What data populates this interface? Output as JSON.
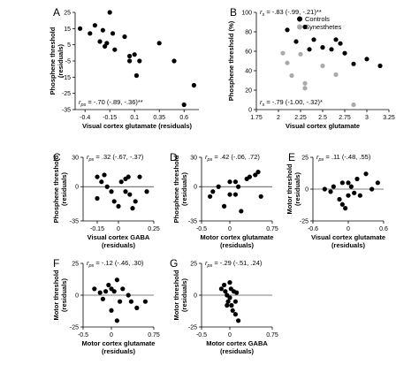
{
  "chart_data": [
    {
      "id": "A",
      "type": "scatter",
      "letter": "A",
      "xlabel": "Visual cortex glutamate (residuals)",
      "ylabel": [
        "Phosphene threshold",
        "(residuals)"
      ],
      "xlim": [
        -0.5,
        0.75
      ],
      "ylim": [
        -35,
        25
      ],
      "xticks": [
        {
          "v": -0.4,
          "label": "-0.4"
        },
        {
          "v": -0.15,
          "label": "-0.15"
        },
        {
          "v": 0.1,
          "label": "0.1"
        },
        {
          "v": 0.35,
          "label": "0.35"
        },
        {
          "v": 0.6,
          "label": "0.6"
        }
      ],
      "yticks": [
        {
          "v": 25,
          "label": "25"
        },
        {
          "v": 15,
          "label": "15"
        },
        {
          "v": 5,
          "label": "5"
        },
        {
          "v": -5,
          "label": "-5"
        },
        {
          "v": -15,
          "label": "-15"
        },
        {
          "v": -25,
          "label": "-25"
        },
        {
          "v": -35,
          "label": "-35"
        }
      ],
      "stat": {
        "prefix": "r",
        "sub": "ps",
        "text": " = -.70 (-.89, -.36)**"
      },
      "stat_pos": "bottom-left",
      "series": [
        {
          "color": "#000000",
          "points": [
            [
              -0.45,
              15
            ],
            [
              -0.35,
              12
            ],
            [
              -0.3,
              17
            ],
            [
              -0.25,
              7
            ],
            [
              -0.22,
              14
            ],
            [
              -0.2,
              4
            ],
            [
              -0.18,
              6
            ],
            [
              -0.15,
              25
            ],
            [
              -0.12,
              12
            ],
            [
              -0.1,
              2
            ],
            [
              0.0,
              10
            ],
            [
              0.05,
              -5
            ],
            [
              0.05,
              -2
            ],
            [
              0.1,
              -1
            ],
            [
              0.12,
              -14
            ],
            [
              0.15,
              -5
            ],
            [
              0.35,
              6
            ],
            [
              0.5,
              -5
            ],
            [
              0.6,
              -32
            ],
            [
              0.7,
              -20
            ]
          ]
        }
      ]
    },
    {
      "id": "B",
      "type": "scatter",
      "letter": "B",
      "xlabel": "Visual cortex glutamate",
      "ylabel": [
        "Phosphene threshold (%)"
      ],
      "xlim": [
        1.75,
        3.25
      ],
      "ylim": [
        0,
        100
      ],
      "xticks": [
        {
          "v": 1.75,
          "label": "1.75"
        },
        {
          "v": 2.0,
          "label": "2"
        },
        {
          "v": 2.25,
          "label": "2.25"
        },
        {
          "v": 2.5,
          "label": "2.5"
        },
        {
          "v": 2.75,
          "label": "2.75"
        },
        {
          "v": 3.0,
          "label": "3"
        },
        {
          "v": 3.25,
          "label": "3.25"
        }
      ],
      "yticks": [
        {
          "v": 100,
          "label": "100"
        },
        {
          "v": 80,
          "label": "80"
        },
        {
          "v": 60,
          "label": "60"
        },
        {
          "v": 40,
          "label": "40"
        },
        {
          "v": 20,
          "label": "20"
        },
        {
          "v": 0,
          "label": "0"
        }
      ],
      "stat": {
        "prefix": "r",
        "sub": "s",
        "text": " = -.83 (-.99, -.21)**"
      },
      "stat2": {
        "prefix": "r",
        "sub": "s",
        "text": " = -.79 (-1.00, -.32)*"
      },
      "stat_pos": "top-left",
      "legend": [
        {
          "label": "Controls",
          "color": "#000000"
        },
        {
          "label": "Synesthetes",
          "color": "#aaaaaa"
        }
      ],
      "series": [
        {
          "name": "Controls",
          "color": "#000000",
          "points": [
            [
              2.1,
              82
            ],
            [
              2.2,
              70
            ],
            [
              2.3,
              85
            ],
            [
              2.35,
              62
            ],
            [
              2.4,
              72
            ],
            [
              2.5,
              64
            ],
            [
              2.6,
              62
            ],
            [
              2.65,
              72
            ],
            [
              2.7,
              68
            ],
            [
              2.75,
              58
            ],
            [
              2.85,
              47
            ],
            [
              3.0,
              52
            ],
            [
              3.15,
              45
            ]
          ]
        },
        {
          "name": "Synesthetes",
          "color": "#aaaaaa",
          "points": [
            [
              2.05,
              58
            ],
            [
              2.1,
              48
            ],
            [
              2.15,
              35
            ],
            [
              2.25,
              57
            ],
            [
              2.3,
              27
            ],
            [
              2.3,
              22
            ],
            [
              2.5,
              45
            ],
            [
              2.65,
              36
            ],
            [
              2.85,
              5
            ]
          ]
        }
      ]
    },
    {
      "id": "C",
      "type": "scatter",
      "letter": "C",
      "xlabel": "Visual cortex GABA",
      "xlabel2": "(residuals)",
      "ylabel": [
        "Phosphene threshold",
        "(residuals)"
      ],
      "xlim": [
        -0.25,
        0.25
      ],
      "ylim": [
        -35,
        30
      ],
      "xticks": [
        {
          "v": -0.15,
          "label": "-0.15"
        },
        {
          "v": 0.0,
          "label": "0"
        },
        {
          "v": 0.25,
          "label": "0.25"
        }
      ],
      "yticks": [
        {
          "v": 30,
          "label": "30"
        },
        {
          "v": 0,
          "label": "0"
        },
        {
          "v": -35,
          "label": "-35"
        }
      ],
      "zero_x": true,
      "stat": {
        "prefix": "r",
        "sub": "ps",
        "text": " = .32 (-.67, -.37)"
      },
      "stat_pos": "top-left",
      "series": [
        {
          "color": "#000000",
          "points": [
            [
              -0.15,
              10
            ],
            [
              -0.12,
              5
            ],
            [
              -0.1,
              12
            ],
            [
              -0.08,
              0
            ],
            [
              -0.05,
              -5
            ],
            [
              -0.03,
              -15
            ],
            [
              0.0,
              -20
            ],
            [
              0.02,
              5
            ],
            [
              0.05,
              -5
            ],
            [
              0.05,
              8
            ],
            [
              0.07,
              10
            ],
            [
              0.1,
              -22
            ],
            [
              0.12,
              -15
            ],
            [
              0.15,
              10
            ],
            [
              0.2,
              -5
            ],
            [
              -0.15,
              -12
            ],
            [
              0.08,
              -8
            ]
          ]
        }
      ]
    },
    {
      "id": "D",
      "type": "scatter",
      "letter": "D",
      "xlabel": "Motor cortex glutamate",
      "xlabel2": "(residuals)",
      "ylabel": [
        "Phosphene threshold",
        "(residuals)"
      ],
      "xlim": [
        -0.5,
        0.75
      ],
      "ylim": [
        -35,
        30
      ],
      "xticks": [
        {
          "v": -0.5,
          "label": "-0.5"
        },
        {
          "v": 0.0,
          "label": "0"
        },
        {
          "v": 0.75,
          "label": "0.75"
        }
      ],
      "yticks": [
        {
          "v": 30,
          "label": "30"
        },
        {
          "v": 0,
          "label": "0"
        },
        {
          "v": -35,
          "label": "-35"
        }
      ],
      "zero_x": true,
      "stat": {
        "prefix": "r",
        "sub": "ps",
        "text": " = .42 (-.06, .72)"
      },
      "stat_pos": "top-left",
      "series": [
        {
          "color": "#000000",
          "points": [
            [
              -0.35,
              -10
            ],
            [
              -0.3,
              -5
            ],
            [
              -0.2,
              0
            ],
            [
              -0.1,
              -20
            ],
            [
              0.0,
              -8
            ],
            [
              0.0,
              5
            ],
            [
              0.1,
              -8
            ],
            [
              0.15,
              0
            ],
            [
              0.2,
              -25
            ],
            [
              0.3,
              8
            ],
            [
              0.35,
              10
            ],
            [
              0.45,
              12
            ],
            [
              0.5,
              15
            ],
            [
              0.55,
              -10
            ],
            [
              0.1,
              5
            ]
          ]
        }
      ]
    },
    {
      "id": "E",
      "type": "scatter",
      "letter": "E",
      "xlabel": "Visual cortex glutamate",
      "xlabel2": "(residuals)",
      "ylabel": [
        "Motor threshold",
        "(residuals)"
      ],
      "xlim": [
        -0.6,
        0.6
      ],
      "ylim": [
        -25,
        25
      ],
      "xticks": [
        {
          "v": -0.6,
          "label": "-0.6"
        },
        {
          "v": 0.0,
          "label": "0"
        },
        {
          "v": 0.6,
          "label": "0.6"
        }
      ],
      "yticks": [
        {
          "v": 25,
          "label": "25"
        },
        {
          "v": 0,
          "label": "0"
        },
        {
          "v": -25,
          "label": "-25"
        }
      ],
      "zero_x": true,
      "stat": {
        "prefix": "r",
        "sub": "ps",
        "text": " = .11 (-.48, .55)"
      },
      "stat_pos": "top-left",
      "series": [
        {
          "color": "#000000",
          "points": [
            [
              -0.4,
              0
            ],
            [
              -0.3,
              -2
            ],
            [
              -0.25,
              2
            ],
            [
              -0.15,
              -8
            ],
            [
              -0.1,
              -12
            ],
            [
              -0.05,
              -15
            ],
            [
              0.0,
              5
            ],
            [
              0.0,
              -5
            ],
            [
              0.05,
              2
            ],
            [
              0.1,
              -3
            ],
            [
              0.15,
              8
            ],
            [
              0.2,
              -5
            ],
            [
              0.3,
              12
            ],
            [
              0.4,
              0
            ],
            [
              0.5,
              5
            ],
            [
              -0.1,
              5
            ]
          ]
        }
      ]
    },
    {
      "id": "F",
      "type": "scatter",
      "letter": "F",
      "xlabel": "Motor cortex glutamate",
      "xlabel2": "(residuals)",
      "ylabel": [
        "Motor threshold",
        "(residuals)"
      ],
      "xlim": [
        -0.5,
        0.75
      ],
      "ylim": [
        -25,
        25
      ],
      "xticks": [
        {
          "v": -0.5,
          "label": "-0.5"
        },
        {
          "v": 0.0,
          "label": "0"
        },
        {
          "v": 0.75,
          "label": "0.75"
        }
      ],
      "yticks": [
        {
          "v": 25,
          "label": "25"
        },
        {
          "v": 0,
          "label": "0"
        },
        {
          "v": -25,
          "label": "-25"
        }
      ],
      "zero_x": true,
      "stat": {
        "prefix": "r",
        "sub": "ps",
        "text": " = -.12 (-.46, .30)"
      },
      "stat_pos": "top-left",
      "series": [
        {
          "color": "#000000",
          "points": [
            [
              -0.3,
              5
            ],
            [
              -0.2,
              2
            ],
            [
              -0.15,
              -3
            ],
            [
              -0.1,
              3
            ],
            [
              -0.05,
              8
            ],
            [
              0.0,
              5
            ],
            [
              0.0,
              -12
            ],
            [
              0.05,
              3
            ],
            [
              0.1,
              12
            ],
            [
              0.15,
              -5
            ],
            [
              0.2,
              5
            ],
            [
              0.3,
              0
            ],
            [
              0.35,
              -5
            ],
            [
              0.45,
              -10
            ],
            [
              0.1,
              -20
            ],
            [
              0.6,
              -5
            ]
          ]
        }
      ]
    },
    {
      "id": "G",
      "type": "scatter",
      "letter": "G",
      "xlabel": "Motor cortex GABA",
      "xlabel2": "(residuals)",
      "ylabel": [
        "Motor threshold",
        "(residuals)"
      ],
      "xlim": [
        -0.5,
        0.75
      ],
      "ylim": [
        -25,
        25
      ],
      "xticks": [
        {
          "v": -0.5,
          "label": "-0.5"
        },
        {
          "v": 0.0,
          "label": "0"
        },
        {
          "v": 0.75,
          "label": "0.75"
        }
      ],
      "yticks": [
        {
          "v": 25,
          "label": "25"
        },
        {
          "v": 0,
          "label": "0"
        },
        {
          "v": -25,
          "label": "-25"
        }
      ],
      "zero_x": true,
      "stat": {
        "prefix": "r",
        "sub": "ps",
        "text": " = -.29 (-.51, .24)"
      },
      "stat_pos": "top-left",
      "series": [
        {
          "color": "#000000",
          "points": [
            [
              -0.15,
              5
            ],
            [
              -0.1,
              8
            ],
            [
              -0.08,
              3
            ],
            [
              -0.05,
              0
            ],
            [
              -0.03,
              -5
            ],
            [
              0.0,
              10
            ],
            [
              0.0,
              -2
            ],
            [
              0.02,
              5
            ],
            [
              0.03,
              -8
            ],
            [
              0.05,
              -12
            ],
            [
              0.07,
              3
            ],
            [
              0.1,
              -15
            ],
            [
              0.1,
              -5
            ],
            [
              0.12,
              2
            ],
            [
              0.15,
              -20
            ],
            [
              -0.05,
              -8
            ]
          ]
        }
      ]
    }
  ]
}
